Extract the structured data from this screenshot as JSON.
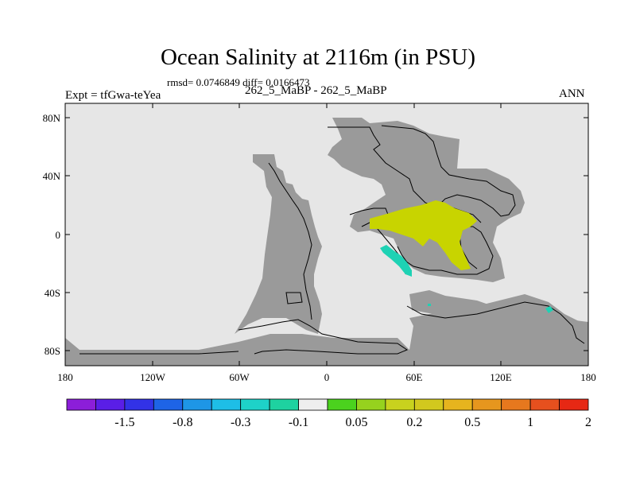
{
  "title": "Ocean Salinity at 2116m (in PSU)",
  "stats": "rmsd= 0.0746849 diff= 0.0166473",
  "expt_label": "Expt = tfGwa-teYea",
  "case_label": "262_5_MaBP - 262_5_MaBP",
  "period_label": "ANN",
  "axes": {
    "lat_labels": [
      "80N",
      "40N",
      "0",
      "40S",
      "80S"
    ],
    "lon_labels": [
      "180",
      "120W",
      "60W",
      "0",
      "60E",
      "120E",
      "180"
    ]
  },
  "colorbar": {
    "colors": [
      "#8c1ed9",
      "#5a1ee6",
      "#3232e6",
      "#1e64e6",
      "#1e96e6",
      "#1ebee6",
      "#1ed2c8",
      "#1ed2a0",
      "#eeeeee",
      "#4bd21e",
      "#96d21e",
      "#c8d21e",
      "#d2c81e",
      "#e6b41e",
      "#e6961e",
      "#e6781e",
      "#e6501e",
      "#e62814"
    ],
    "labels": [
      "-1.5",
      "-0.8",
      "-0.3",
      "-0.1",
      "0.05",
      "0.2",
      "0.5",
      "1",
      "2"
    ]
  },
  "colors": {
    "land": "#9a9a9a",
    "ocean_near_zero": "#e6e6e6",
    "positive_anomaly": "#c8d400",
    "negative_anomaly": "#1ed2b4"
  }
}
